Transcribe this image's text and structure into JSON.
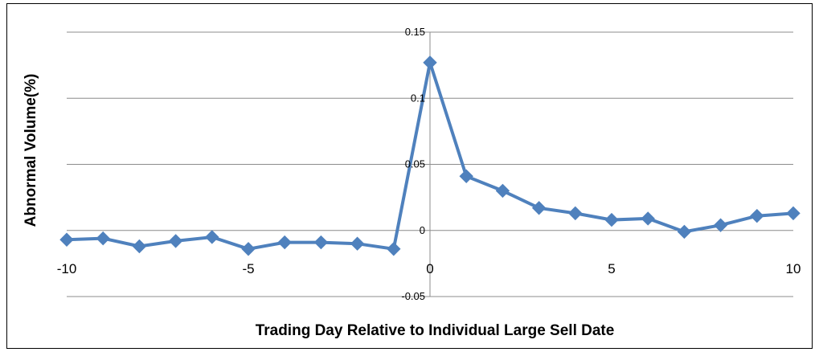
{
  "chart_data": {
    "type": "line",
    "title": "",
    "xlabel": "Trading Day Relative to Individual Large Sell Date",
    "ylabel": "Abnormal Volume(%)",
    "xlim": [
      -10,
      10
    ],
    "ylim": [
      -0.05,
      0.15
    ],
    "x_ticks": [
      -10,
      -5,
      0,
      5,
      10
    ],
    "x_tick_labels": [
      "-10",
      "-5",
      "0",
      "5",
      "10"
    ],
    "y_ticks": [
      0.15,
      0.1,
      0.05,
      0,
      -0.05
    ],
    "y_tick_labels": [
      "0.15",
      "0.1",
      "0.05",
      "0",
      "-0.05"
    ],
    "grid": "horizontal",
    "legend": "none",
    "line_color": "#4F81BD",
    "marker": "diamond",
    "series": [
      {
        "x": [
          -10,
          -9,
          -8,
          -7,
          -6,
          -5,
          -4,
          -3,
          -2,
          -1,
          0,
          1,
          2,
          3,
          4,
          5,
          6,
          7,
          8,
          9,
          10
        ],
        "values": [
          -0.007,
          -0.006,
          -0.012,
          -0.008,
          -0.005,
          -0.014,
          -0.009,
          -0.009,
          -0.01,
          -0.014,
          0.127,
          0.041,
          0.03,
          0.017,
          0.013,
          0.008,
          0.009,
          -0.001,
          0.004,
          0.011,
          0.013
        ]
      }
    ]
  }
}
